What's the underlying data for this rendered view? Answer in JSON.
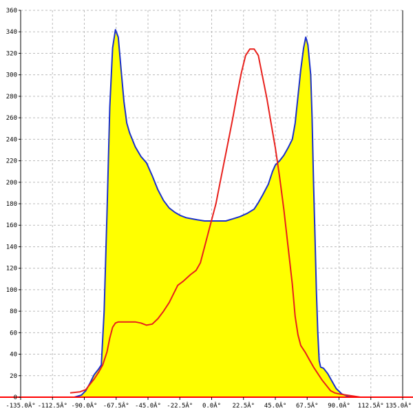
{
  "chart_data": {
    "type": "line",
    "title": "",
    "xlabel": "",
    "ylabel": "",
    "xlim": [
      -135,
      135
    ],
    "ylim": [
      0,
      360
    ],
    "x_ticks": [
      {
        "value": -135,
        "label": "-135.0Â°"
      },
      {
        "value": -112.5,
        "label": "-112.5Â°"
      },
      {
        "value": -90,
        "label": "-90.0Â°"
      },
      {
        "value": -67.5,
        "label": "-67.5Â°"
      },
      {
        "value": -45,
        "label": "-45.0Â°"
      },
      {
        "value": -22.5,
        "label": "-22.5Â°"
      },
      {
        "value": 0,
        "label": "0.0Â°"
      },
      {
        "value": 22.5,
        "label": "22.5Â°"
      },
      {
        "value": 45,
        "label": "45.0Â°"
      },
      {
        "value": 67.5,
        "label": "67.5Â°"
      },
      {
        "value": 90,
        "label": "90.0Â°"
      },
      {
        "value": 112.5,
        "label": "112.5Â°"
      },
      {
        "value": 135,
        "label": "135.0Â°"
      }
    ],
    "y_ticks": [
      0,
      20,
      40,
      60,
      80,
      100,
      120,
      140,
      160,
      180,
      200,
      220,
      240,
      260,
      280,
      300,
      320,
      340,
      360
    ],
    "grid": true,
    "legend": "none",
    "colors": {
      "fill": "#ffff00",
      "blue_line": "#1a2fcc",
      "red_line": "#e8201c",
      "grid": "#bbbbbb",
      "axis": "#000000",
      "baseline": "#ff0000"
    },
    "series": [
      {
        "color": "blue",
        "filled": true,
        "points": [
          [
            -97,
            0
          ],
          [
            -92,
            2
          ],
          [
            -89,
            6
          ],
          [
            -86,
            13
          ],
          [
            -83,
            21
          ],
          [
            -80,
            26
          ],
          [
            -78,
            30
          ],
          [
            -76,
            80
          ],
          [
            -74,
            170
          ],
          [
            -72,
            270
          ],
          [
            -70,
            325
          ],
          [
            -68,
            342
          ],
          [
            -66,
            335
          ],
          [
            -64,
            305
          ],
          [
            -62,
            275
          ],
          [
            -60,
            255
          ],
          [
            -58,
            246
          ],
          [
            -54,
            233
          ],
          [
            -50,
            224
          ],
          [
            -46,
            218
          ],
          [
            -42,
            206
          ],
          [
            -38,
            193
          ],
          [
            -34,
            183
          ],
          [
            -30,
            176
          ],
          [
            -26,
            172
          ],
          [
            -22,
            169
          ],
          [
            -18,
            167
          ],
          [
            -14,
            166
          ],
          [
            -10,
            165
          ],
          [
            -5,
            164
          ],
          [
            0,
            164
          ],
          [
            5,
            164
          ],
          [
            10,
            164
          ],
          [
            15,
            166
          ],
          [
            20,
            168
          ],
          [
            25,
            171
          ],
          [
            30,
            175
          ],
          [
            33,
            181
          ],
          [
            36,
            188
          ],
          [
            40,
            198
          ],
          [
            43,
            210
          ],
          [
            45,
            216
          ],
          [
            48,
            220
          ],
          [
            51,
            225
          ],
          [
            54,
            232
          ],
          [
            57,
            240
          ],
          [
            59,
            255
          ],
          [
            61,
            280
          ],
          [
            63,
            305
          ],
          [
            65,
            325
          ],
          [
            66.5,
            335
          ],
          [
            68,
            328
          ],
          [
            70,
            300
          ],
          [
            71,
            260
          ],
          [
            72,
            200
          ],
          [
            73,
            150
          ],
          [
            74,
            100
          ],
          [
            75,
            60
          ],
          [
            76,
            34
          ],
          [
            77,
            28
          ],
          [
            79,
            27
          ],
          [
            82,
            22
          ],
          [
            85,
            15
          ],
          [
            88,
            8
          ],
          [
            92,
            3
          ],
          [
            96,
            1
          ],
          [
            100,
            0
          ]
        ]
      },
      {
        "color": "red",
        "filled": false,
        "points": [
          [
            -100,
            4
          ],
          [
            -93,
            5
          ],
          [
            -89,
            7
          ],
          [
            -86,
            12
          ],
          [
            -83,
            17
          ],
          [
            -80,
            23
          ],
          [
            -77,
            30
          ],
          [
            -74,
            42
          ],
          [
            -72,
            55
          ],
          [
            -70,
            65
          ],
          [
            -68,
            69
          ],
          [
            -66,
            70
          ],
          [
            -62,
            70
          ],
          [
            -58,
            70
          ],
          [
            -54,
            70
          ],
          [
            -50,
            69
          ],
          [
            -46,
            67
          ],
          [
            -42,
            68
          ],
          [
            -38,
            73
          ],
          [
            -34,
            80
          ],
          [
            -30,
            88
          ],
          [
            -27,
            96
          ],
          [
            -24,
            104
          ],
          [
            -20,
            108
          ],
          [
            -15,
            114
          ],
          [
            -11,
            118
          ],
          [
            -8,
            125
          ],
          [
            -6,
            135
          ],
          [
            -4,
            145
          ],
          [
            -2,
            155
          ],
          [
            0,
            165
          ],
          [
            3,
            180
          ],
          [
            6,
            200
          ],
          [
            9,
            220
          ],
          [
            12,
            240
          ],
          [
            15,
            260
          ],
          [
            18,
            282
          ],
          [
            21,
            302
          ],
          [
            24,
            318
          ],
          [
            27,
            324
          ],
          [
            30,
            324
          ],
          [
            33,
            318
          ],
          [
            36,
            298
          ],
          [
            39,
            278
          ],
          [
            42,
            255
          ],
          [
            45,
            232
          ],
          [
            48,
            205
          ],
          [
            51,
            175
          ],
          [
            54,
            140
          ],
          [
            57,
            105
          ],
          [
            59,
            75
          ],
          [
            61,
            58
          ],
          [
            63,
            48
          ],
          [
            66,
            42
          ],
          [
            69,
            35
          ],
          [
            72,
            28
          ],
          [
            75,
            22
          ],
          [
            78,
            16
          ],
          [
            81,
            11
          ],
          [
            84,
            6
          ],
          [
            87,
            4
          ],
          [
            90,
            3
          ],
          [
            95,
            2
          ],
          [
            100,
            1
          ],
          [
            105,
            0
          ]
        ]
      }
    ]
  }
}
